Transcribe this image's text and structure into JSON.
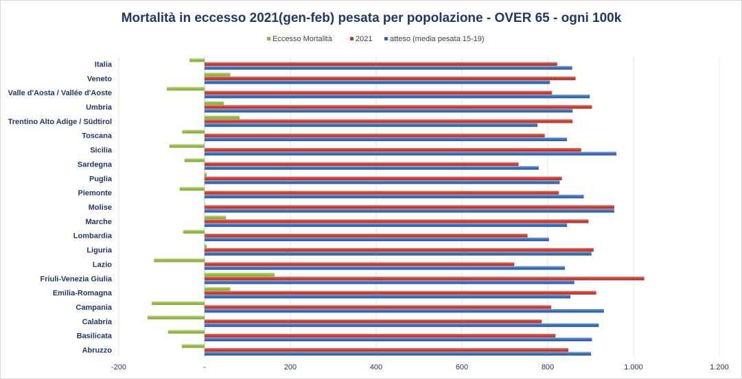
{
  "chart_data": {
    "type": "bar",
    "orientation": "horizontal",
    "title": "Mortalità  in eccesso 2021(gen-feb) pesata  per popolazione  - OVER 65 - ogni 100k",
    "xlabel": "",
    "ylabel": "",
    "xlim": [
      -200,
      1200
    ],
    "x_ticks": [
      -200,
      0,
      200,
      400,
      600,
      800,
      1000,
      1200
    ],
    "x_tick_labels": [
      "-200",
      "-",
      "200",
      "400",
      "600",
      "800",
      "1.000",
      "1.200"
    ],
    "grid": true,
    "legend_position": "top-center",
    "categories": [
      "Italia",
      "Veneto",
      "Valle d'Aosta / Vallée d'Aoste",
      "Umbria",
      "Trentino Alto Adige / Südtirol",
      "Toscana",
      "Sicilia",
      "Sardegna",
      "Puglia",
      "Piemonte",
      "Molise",
      "Marche",
      "Lombardia",
      "Liguria",
      "Lazio",
      "Friuli-Venezia Giulia",
      "Emilia-Romagna",
      "Campania",
      "Calabria",
      "Basilicata",
      "Abruzzo"
    ],
    "series": [
      {
        "name": "Eccesso Mortalità",
        "color": "#8db343",
        "gradient_light": "#c5dc8a",
        "values": [
          -35,
          60,
          -88,
          45,
          82,
          -52,
          -82,
          -47,
          5,
          -58,
          0,
          50,
          -50,
          5,
          -118,
          163,
          60,
          -123,
          -133,
          -85,
          -53
        ]
      },
      {
        "name": "2021",
        "color": "#c0392b",
        "gradient_light": "#e07a72",
        "values": [
          822,
          865,
          810,
          903,
          858,
          793,
          878,
          732,
          833,
          826,
          955,
          895,
          753,
          907,
          722,
          1025,
          913,
          808,
          786,
          818,
          848
        ]
      },
      {
        "name": "atteso (media pesata 15-19)",
        "color": "#3566ad",
        "gradient_light": "#7ba3da",
        "values": [
          857,
          805,
          898,
          858,
          776,
          845,
          960,
          779,
          828,
          884,
          955,
          845,
          803,
          902,
          840,
          862,
          853,
          931,
          919,
          903,
          901
        ]
      }
    ]
  }
}
